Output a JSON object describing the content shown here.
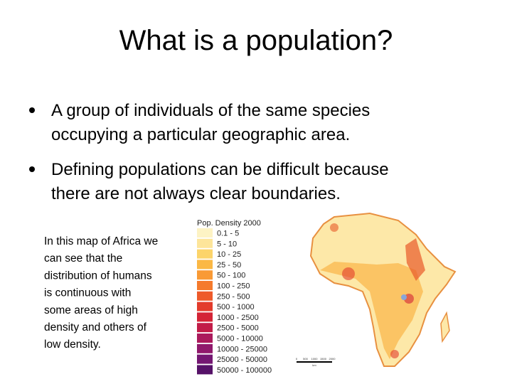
{
  "header": {
    "title": "What is a population?"
  },
  "bullets": [
    {
      "lines": [
        "A group of individuals of the same species",
        "occupying a particular geographic area."
      ]
    },
    {
      "lines": [
        "Defining populations can be difficult because",
        "there are not always clear boundaries."
      ]
    }
  ],
  "caption": {
    "lines": [
      "In this map of Africa we",
      "can see that the",
      "distribution of humans",
      "is continuous with",
      "some areas of high",
      "density and others of",
      "low density."
    ]
  },
  "map": {
    "legend_title": "Pop. Density 2000",
    "legend": [
      {
        "label": "0.1 - 5",
        "color": "#fdf3c4"
      },
      {
        "label": "5 - 10",
        "color": "#fde59a"
      },
      {
        "label": "10 - 25",
        "color": "#fcd46a"
      },
      {
        "label": "25 - 50",
        "color": "#fbb845"
      },
      {
        "label": "50 - 100",
        "color": "#f99a35"
      },
      {
        "label": "100 - 250",
        "color": "#f57a2c"
      },
      {
        "label": "250 - 500",
        "color": "#ee5a2a"
      },
      {
        "label": "500 - 1000",
        "color": "#e33c2c"
      },
      {
        "label": "1000 - 2500",
        "color": "#d42436"
      },
      {
        "label": "2500 - 5000",
        "color": "#c21c48"
      },
      {
        "label": "5000 - 10000",
        "color": "#ab1a5c"
      },
      {
        "label": "10000 - 25000",
        "color": "#90196c"
      },
      {
        "label": "25000 - 50000",
        "color": "#741772"
      },
      {
        "label": "50000 - 100000",
        "color": "#561268"
      }
    ],
    "scale_labels": [
      "0",
      "500",
      "1000",
      "1500",
      "2000"
    ],
    "scale_unit": "km"
  }
}
